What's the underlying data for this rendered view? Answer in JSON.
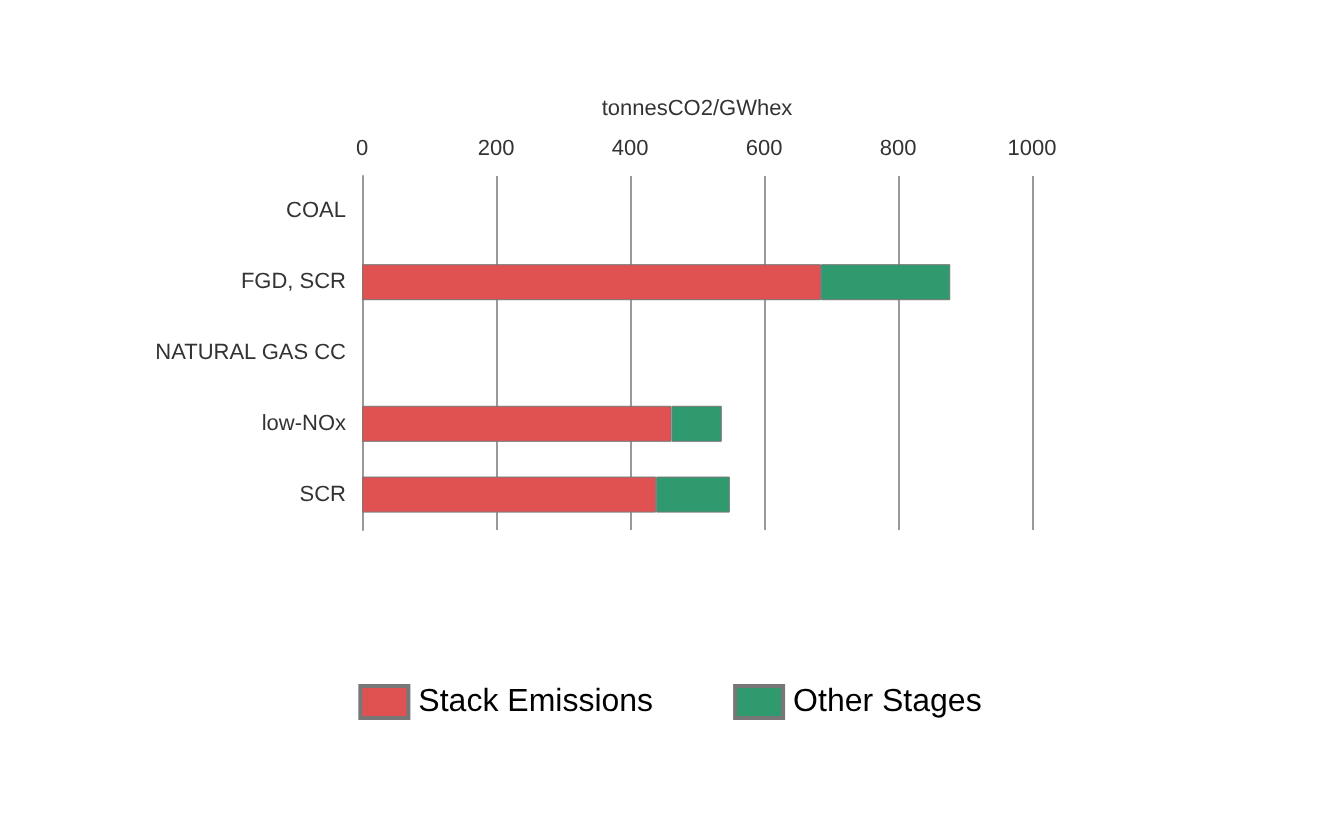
{
  "chart_data": {
    "type": "bar",
    "orientation": "horizontal",
    "stacked": true,
    "xlabel": "tonnesCO2/GWhex",
    "categories": [
      "COAL",
      "FGD, SCR",
      "NATURAL GAS CC",
      "low-NOx",
      "SCR"
    ],
    "series": [
      {
        "name": "Stack Emissions",
        "color": "#e05252",
        "values": [
          null,
          685,
          null,
          462,
          439
        ]
      },
      {
        "name": "Other Stages",
        "color": "#2e9a6e",
        "values": [
          null,
          193,
          null,
          75,
          110
        ]
      }
    ],
    "xlim": [
      0,
      1000
    ],
    "xticks": [
      0,
      200,
      400,
      600,
      800,
      1000
    ],
    "grid": "x",
    "legend": "bottom"
  }
}
